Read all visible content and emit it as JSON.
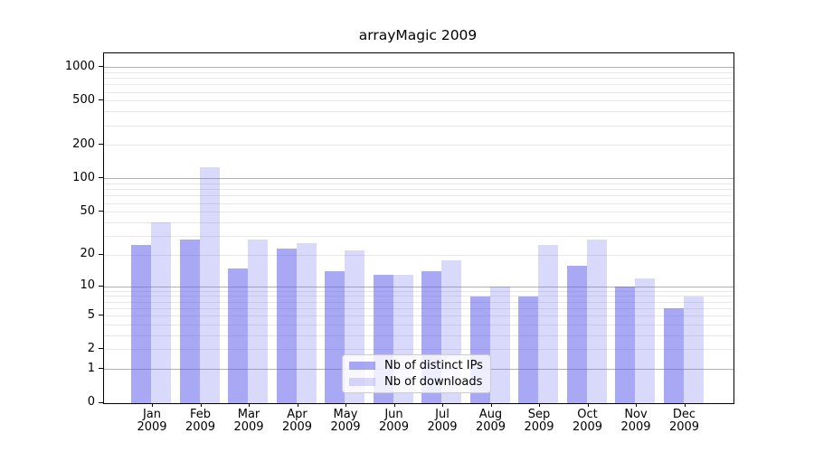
{
  "chart_data": {
    "type": "bar",
    "title": "arrayMagic 2009",
    "categories": [
      "Jan",
      "Feb",
      "Mar",
      "Apr",
      "May",
      "Jun",
      "Jul",
      "Aug",
      "Sep",
      "Oct",
      "Nov",
      "Dec"
    ],
    "category_year": "2009",
    "series": [
      {
        "name": "Nb of distinct IPs",
        "color": "rgba(100,100,235,0.56)",
        "values": [
          25,
          28,
          15,
          23,
          14,
          13,
          14,
          8,
          8,
          16,
          10,
          6
        ]
      },
      {
        "name": "Nb of downloads",
        "color": "rgba(102,102,240,0.25)",
        "values": [
          40,
          127,
          28,
          26,
          22,
          13,
          18,
          10,
          25,
          28,
          12,
          8
        ]
      }
    ],
    "yscale": "log1p",
    "yticks": [
      0,
      1,
      2,
      5,
      10,
      20,
      50,
      100,
      200,
      500,
      1000
    ],
    "ylim": [
      0,
      1340
    ],
    "grid": {
      "major": [
        1,
        10,
        100,
        1000
      ],
      "minor_per_decade": [
        2,
        3,
        4,
        5,
        6,
        7,
        8,
        9
      ]
    },
    "legend_position": "lower-center",
    "xlabel": "",
    "ylabel": ""
  },
  "colors": {
    "major_grid": "#b0b0b0",
    "minor_grid": "#e7e7e7",
    "axis": "#000000",
    "legend_border": "#cccccc"
  }
}
